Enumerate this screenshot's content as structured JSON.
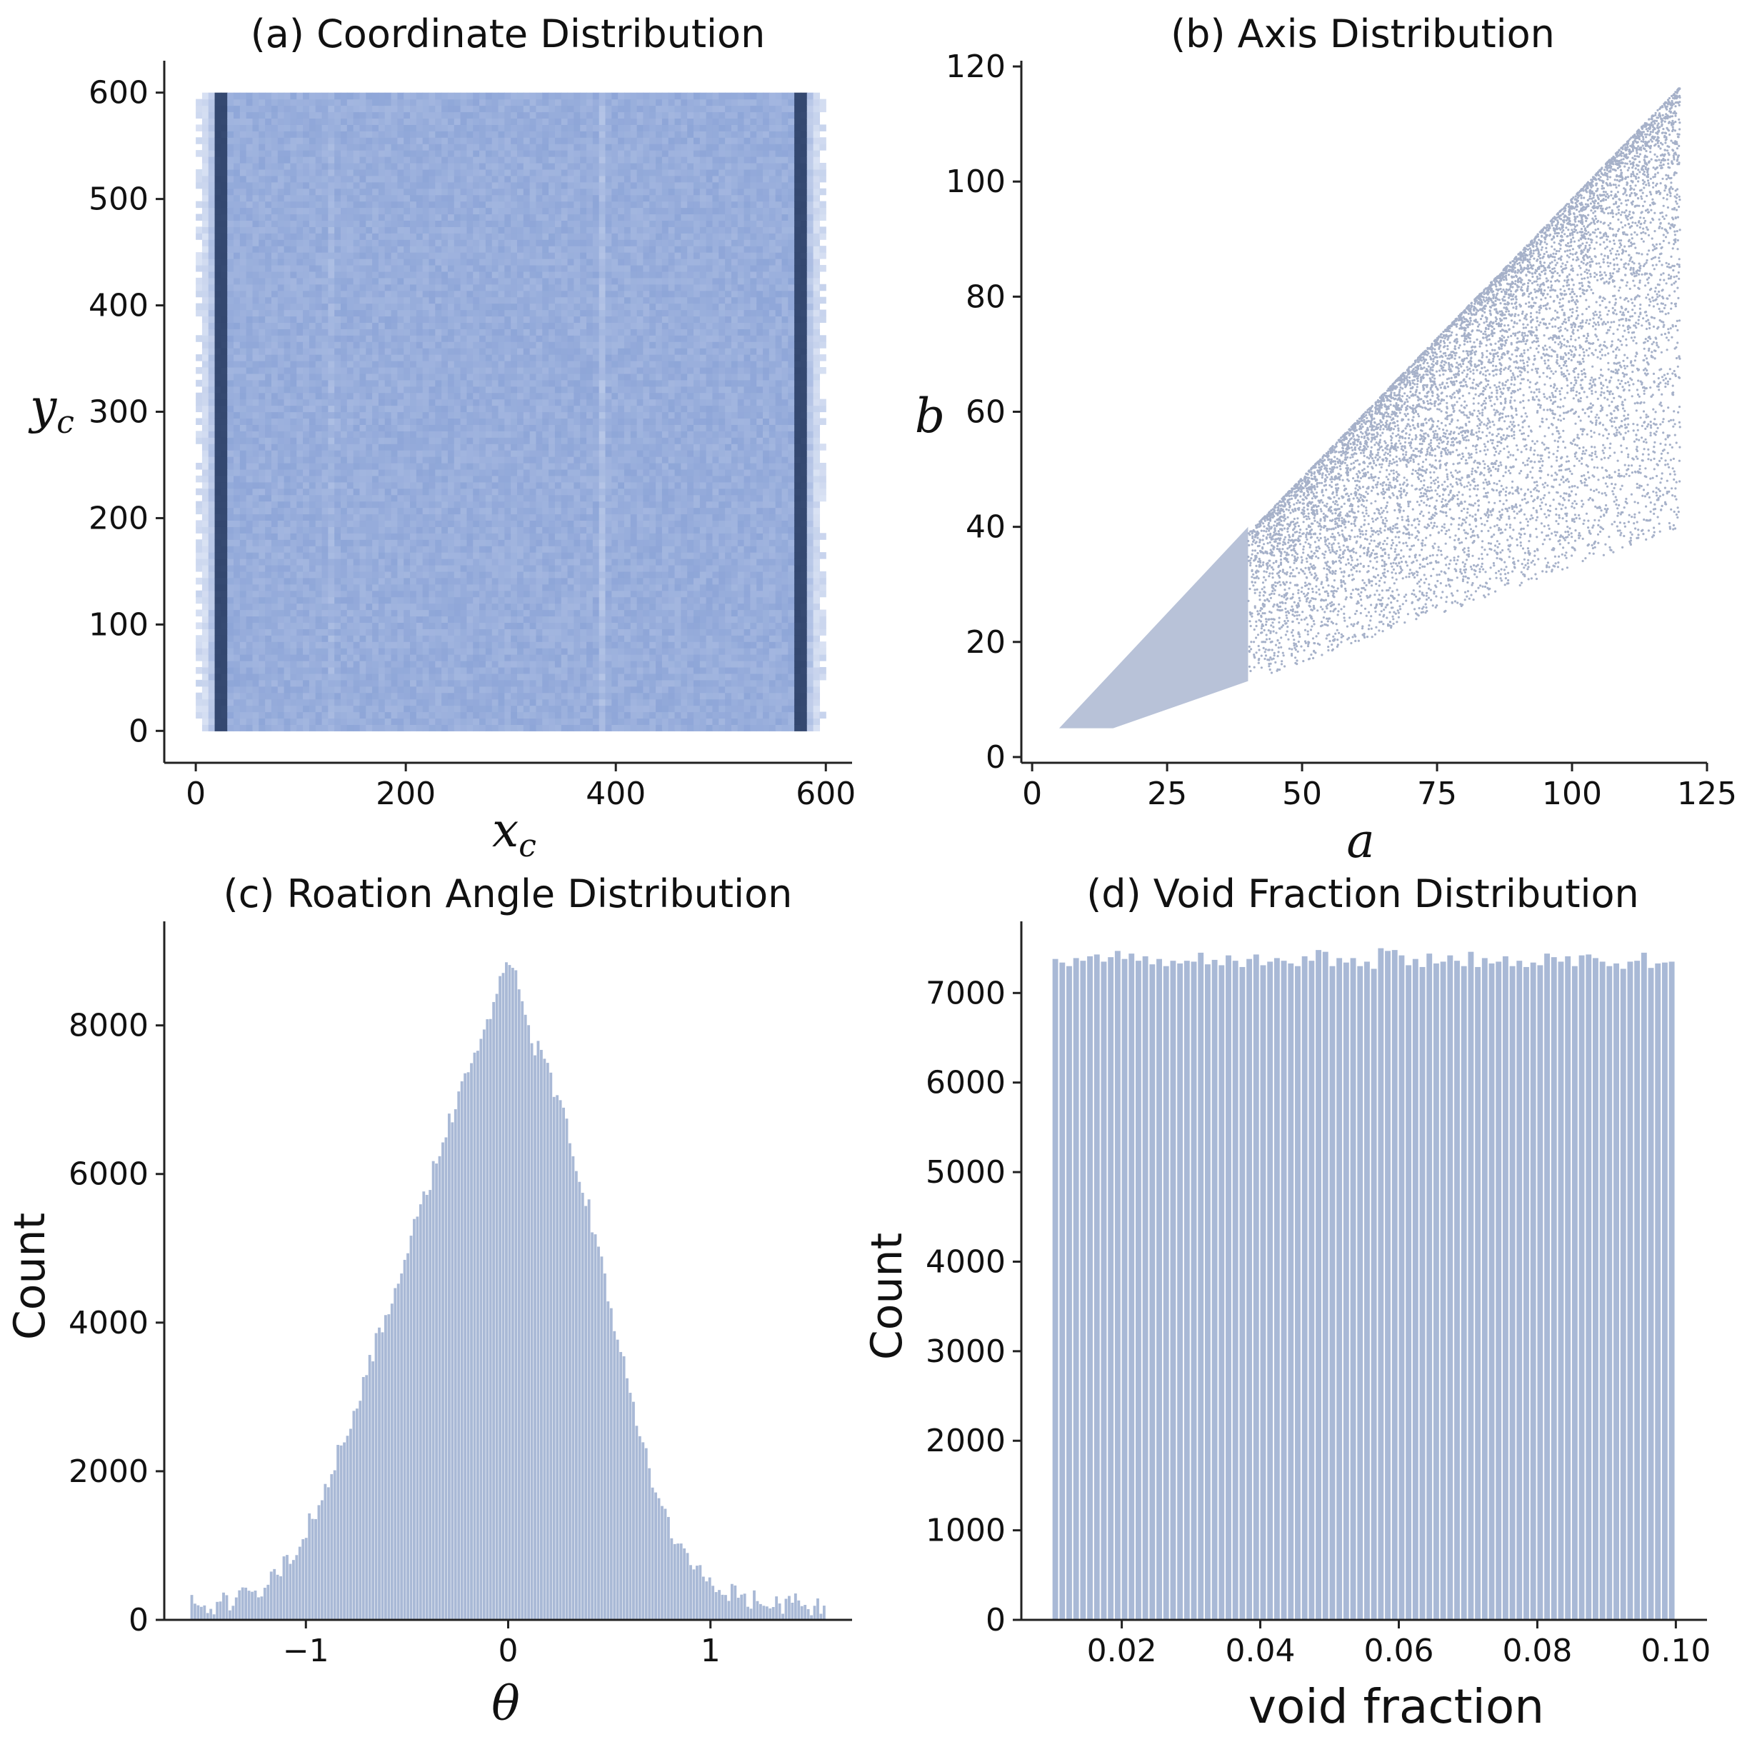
{
  "chart_data": [
    {
      "id": "a",
      "type": "heatmap",
      "title": "(a) Coordinate Distribution",
      "xlabel": "x",
      "xlabel_sub": "c",
      "ylabel": "y",
      "ylabel_sub": "c",
      "xlim": [
        -30,
        625
      ],
      "ylim": [
        -30,
        630
      ],
      "xticks": [
        0,
        200,
        400,
        600
      ],
      "yticks": [
        0,
        100,
        200,
        300,
        400,
        500,
        600
      ],
      "x_range": [
        0,
        600
      ],
      "y_range": [
        0,
        600
      ],
      "bins": 100,
      "dense_columns": [
        25,
        575
      ],
      "edge_columns": [
        5,
        595
      ],
      "color": "#6b8cc8"
    },
    {
      "id": "b",
      "type": "scatter",
      "title": "(b) Axis Distribution",
      "xlabel": "a",
      "ylabel": "b",
      "xlim": [
        -2,
        125
      ],
      "ylim": [
        -1,
        121
      ],
      "xticks": [
        0,
        25,
        50,
        75,
        100,
        125
      ],
      "yticks": [
        0,
        20,
        40,
        60,
        80,
        100,
        120
      ],
      "dense_region": {
        "a_range": [
          5,
          40
        ],
        "b_min_ratio": 0.33,
        "b_max_ratio": 1.0
      },
      "sparse_region": {
        "a_range": [
          40,
          120
        ],
        "b_min_ratio": 0.33,
        "b_max_ratio": 0.97,
        "n_points": 9000
      },
      "color": "#b8c2d8"
    },
    {
      "id": "c",
      "type": "bar",
      "title": "(c) Roation Angle Distribution",
      "xlabel": "θ",
      "ylabel": "Count",
      "xlim": [
        -1.7,
        1.7
      ],
      "ylim": [
        0,
        9400
      ],
      "xticks": [
        -1,
        0,
        1
      ],
      "xtick_labels": [
        "−1",
        "0",
        "1"
      ],
      "yticks": [
        0,
        2000,
        4000,
        6000,
        8000
      ],
      "x_range": [
        -1.5708,
        1.5708
      ],
      "bins": 200,
      "peak": 9100,
      "color": "#a9b9d6"
    },
    {
      "id": "d",
      "type": "bar",
      "title": "(d) Void Fraction Distribution",
      "xlabel": "void fraction",
      "ylabel": "Count",
      "xlim": [
        0.0055,
        0.1045
      ],
      "ylim": [
        0,
        7800
      ],
      "xticks": [
        0.02,
        0.04,
        0.06,
        0.08,
        0.1
      ],
      "xtick_labels": [
        "0.02",
        "0.04",
        "0.06",
        "0.08",
        "0.10"
      ],
      "yticks": [
        0,
        1000,
        2000,
        3000,
        4000,
        5000,
        6000,
        7000
      ],
      "x_range": [
        0.01,
        0.1
      ],
      "bins": 90,
      "values": [
        7380,
        7340,
        7300,
        7390,
        7360,
        7410,
        7430,
        7350,
        7400,
        7470,
        7380,
        7440,
        7360,
        7410,
        7320,
        7380,
        7300,
        7360,
        7330,
        7360,
        7350,
        7450,
        7320,
        7370,
        7310,
        7420,
        7360,
        7290,
        7380,
        7430,
        7310,
        7350,
        7390,
        7360,
        7330,
        7300,
        7410,
        7360,
        7480,
        7460,
        7300,
        7390,
        7340,
        7390,
        7300,
        7350,
        7270,
        7500,
        7470,
        7480,
        7420,
        7310,
        7380,
        7290,
        7440,
        7330,
        7350,
        7420,
        7360,
        7300,
        7460,
        7290,
        7390,
        7330,
        7350,
        7410,
        7300,
        7360,
        7290,
        7340,
        7310,
        7440,
        7400,
        7350,
        7410,
        7300,
        7420,
        7430,
        7390,
        7350,
        7300,
        7330,
        7270,
        7350,
        7360,
        7450,
        7280,
        7330,
        7340,
        7350
      ],
      "color": "#a9b9d6"
    }
  ]
}
